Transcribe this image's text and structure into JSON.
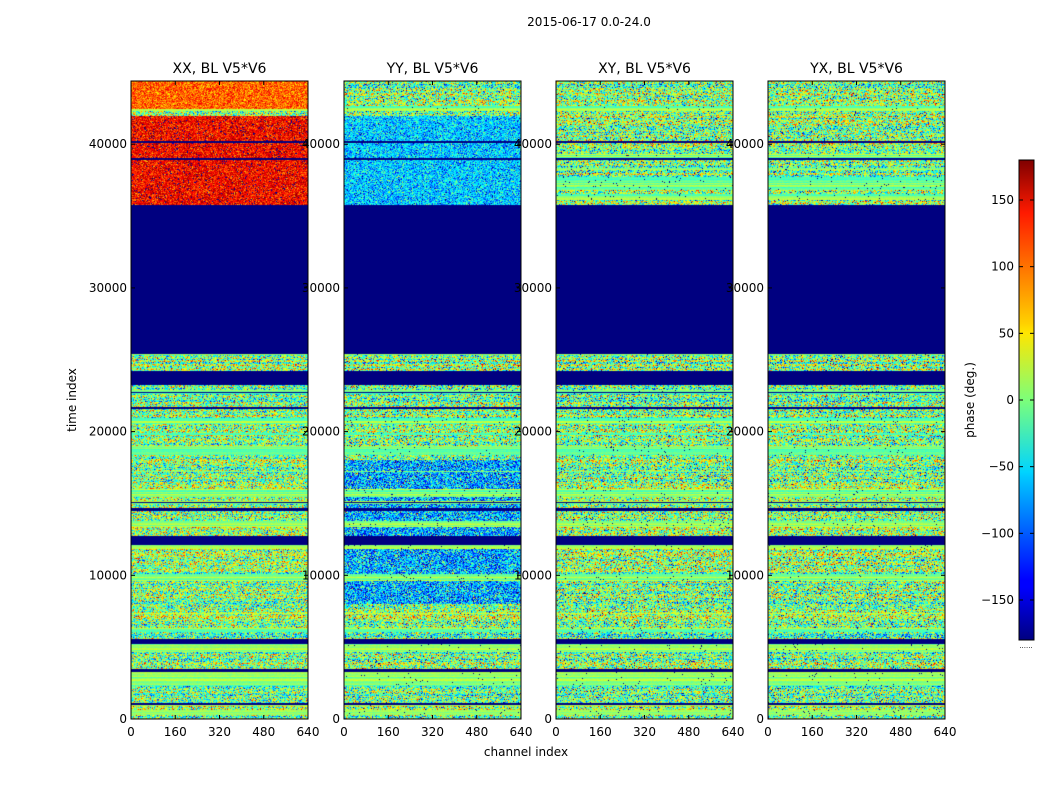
{
  "chart_data": {
    "type": "heatmap",
    "suptitle": "2015-06-17 0.0-24.0",
    "xlabel": "channel index",
    "ylabel": "time index",
    "xlim": [
      0,
      640
    ],
    "ylim": [
      0,
      44400
    ],
    "xticks": [
      0,
      160,
      320,
      480,
      640
    ],
    "yticks": [
      0,
      10000,
      20000,
      30000,
      40000
    ],
    "colormap": "jet",
    "colorbar": {
      "label": "phase (deg.)",
      "range": [
        -180,
        180
      ],
      "ticks": [
        150,
        100,
        50,
        0,
        -50,
        -100,
        -150
      ],
      "tick_labels": [
        "150",
        "100",
        "50",
        "0",
        "−50",
        "−100",
        "−150"
      ]
    },
    "masked_time_range": [
      25400,
      35800
    ],
    "panels": [
      {
        "title": "XX, BL V5*V6",
        "pol": "XX"
      },
      {
        "title": "YY, BL V5*V6",
        "pol": "YY"
      },
      {
        "title": "XY, BL V5*V6",
        "pol": "XY"
      },
      {
        "title": "YX, BL V5*V6",
        "pol": "YX"
      }
    ]
  }
}
